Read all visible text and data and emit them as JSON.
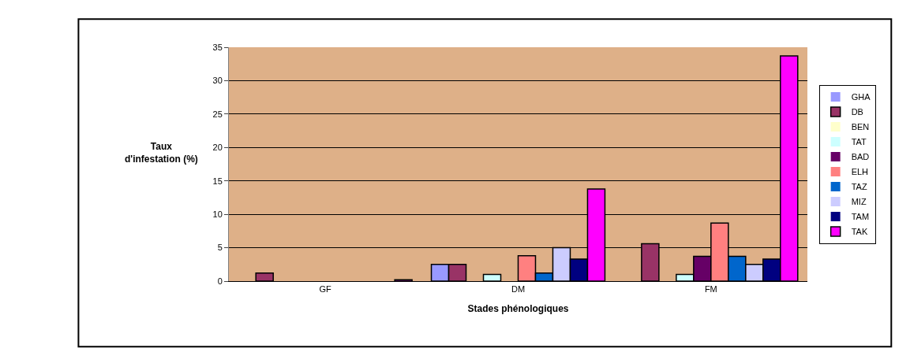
{
  "chart_data": {
    "type": "bar",
    "xlabel": "Stades phénologiques",
    "ylabel": "Taux\nd'infestation (%)",
    "categories": [
      "GF",
      "DM",
      "FM"
    ],
    "series": [
      {
        "name": "GHA",
        "color": "#9999ff",
        "values": [
          0,
          2.5,
          0
        ]
      },
      {
        "name": "DB",
        "color": "#993366",
        "values": [
          1.2,
          2.5,
          5.6
        ]
      },
      {
        "name": "BEN",
        "color": "#ffffcc",
        "values": [
          0,
          0,
          0
        ]
      },
      {
        "name": "TAT",
        "color": "#ccffff",
        "values": [
          0,
          1,
          1
        ]
      },
      {
        "name": "BAD",
        "color": "#660066",
        "values": [
          0,
          0,
          3.7
        ]
      },
      {
        "name": "ELH",
        "color": "#ff8080",
        "values": [
          0,
          3.8,
          8.7
        ]
      },
      {
        "name": "TAZ",
        "color": "#0066cc",
        "values": [
          0,
          1.2,
          3.7
        ]
      },
      {
        "name": "MIZ",
        "color": "#ccccff",
        "values": [
          0,
          5,
          2.5
        ]
      },
      {
        "name": "TAM",
        "color": "#000080",
        "values": [
          0,
          3.3,
          3.3
        ]
      },
      {
        "name": "TAK",
        "color": "#ff00ff",
        "values": [
          0.2,
          13.8,
          33.7
        ]
      }
    ],
    "ylim": [
      0,
      35
    ],
    "yticks": [
      0,
      5,
      10,
      15,
      20,
      25,
      30,
      35
    ],
    "grid": "y",
    "legend": "right"
  }
}
